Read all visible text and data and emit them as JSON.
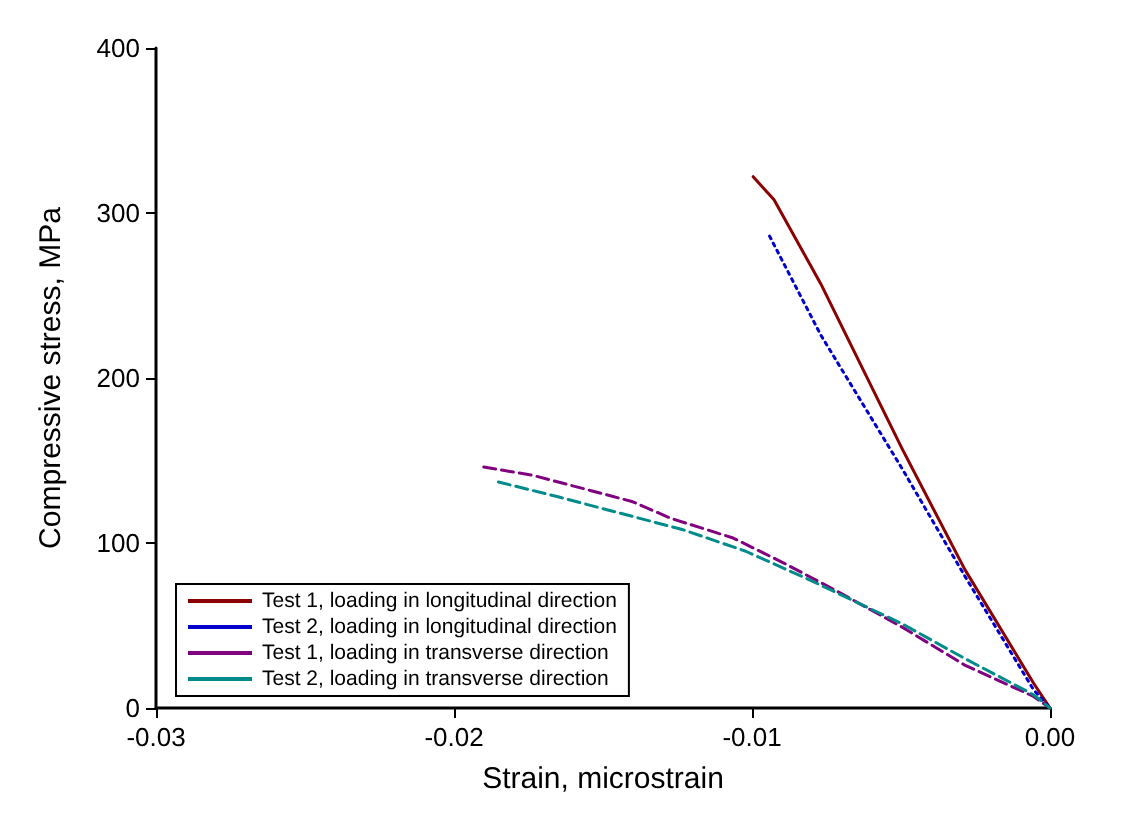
{
  "chart_data": {
    "type": "line",
    "xlabel": "Strain, microstrain",
    "ylabel": "Compressive stress, MPa",
    "xlim": [
      -0.03,
      0
    ],
    "ylim": [
      0,
      400
    ],
    "xticks": [
      {
        "value": -0.03,
        "label": "-0.03"
      },
      {
        "value": -0.02,
        "label": "-0.02"
      },
      {
        "value": -0.01,
        "label": "-0.01"
      },
      {
        "value": 0,
        "label": "0.00"
      }
    ],
    "yticks": [
      0,
      100,
      200,
      300,
      400
    ],
    "grid": false,
    "legend": "bottom left",
    "marker": "none",
    "series": [
      {
        "name": "Test 1, loading in longitudinal direction",
        "color": "#8b0000",
        "line_style": "solid",
        "x": [
          -0.00996,
          -0.00926,
          -0.00769,
          -0.00496,
          -0.00286,
          -0.00055,
          0
        ],
        "values": [
          322,
          308,
          257,
          157,
          84,
          15,
          0
        ]
      },
      {
        "name": "Test 2, loading in longitudinal direction",
        "color": "#0000cc",
        "line_style": "dotted",
        "x": [
          -0.00941,
          -0.00769,
          -0.00496,
          -0.00286,
          -0.00055,
          0
        ],
        "values": [
          286,
          226,
          145,
          80,
          11,
          0
        ]
      },
      {
        "name": "Test 1, loading in transverse direction",
        "color": "#800080",
        "line_style": "dashed",
        "x": [
          -0.019,
          -0.01735,
          -0.01546,
          -0.014,
          -0.01273,
          -0.01168,
          -0.01063,
          -0.00895,
          -0.00727,
          -0.00496,
          -0.00286,
          -0.00055,
          0
        ],
        "values": [
          146,
          141,
          132,
          125,
          115,
          109,
          103,
          88,
          72,
          49,
          26,
          7,
          0
        ]
      },
      {
        "name": "Test 2, loading in transverse direction",
        "color": "#008b8b",
        "line_style": "dashed",
        "x": [
          -0.01851,
          -0.01651,
          -0.01441,
          -0.01231,
          -0.01021,
          -0.00811,
          -0.00496,
          -0.00286,
          -0.00055,
          0
        ],
        "values": [
          137,
          128,
          118,
          108,
          95,
          78,
          51,
          30,
          8,
          0
        ]
      }
    ]
  }
}
